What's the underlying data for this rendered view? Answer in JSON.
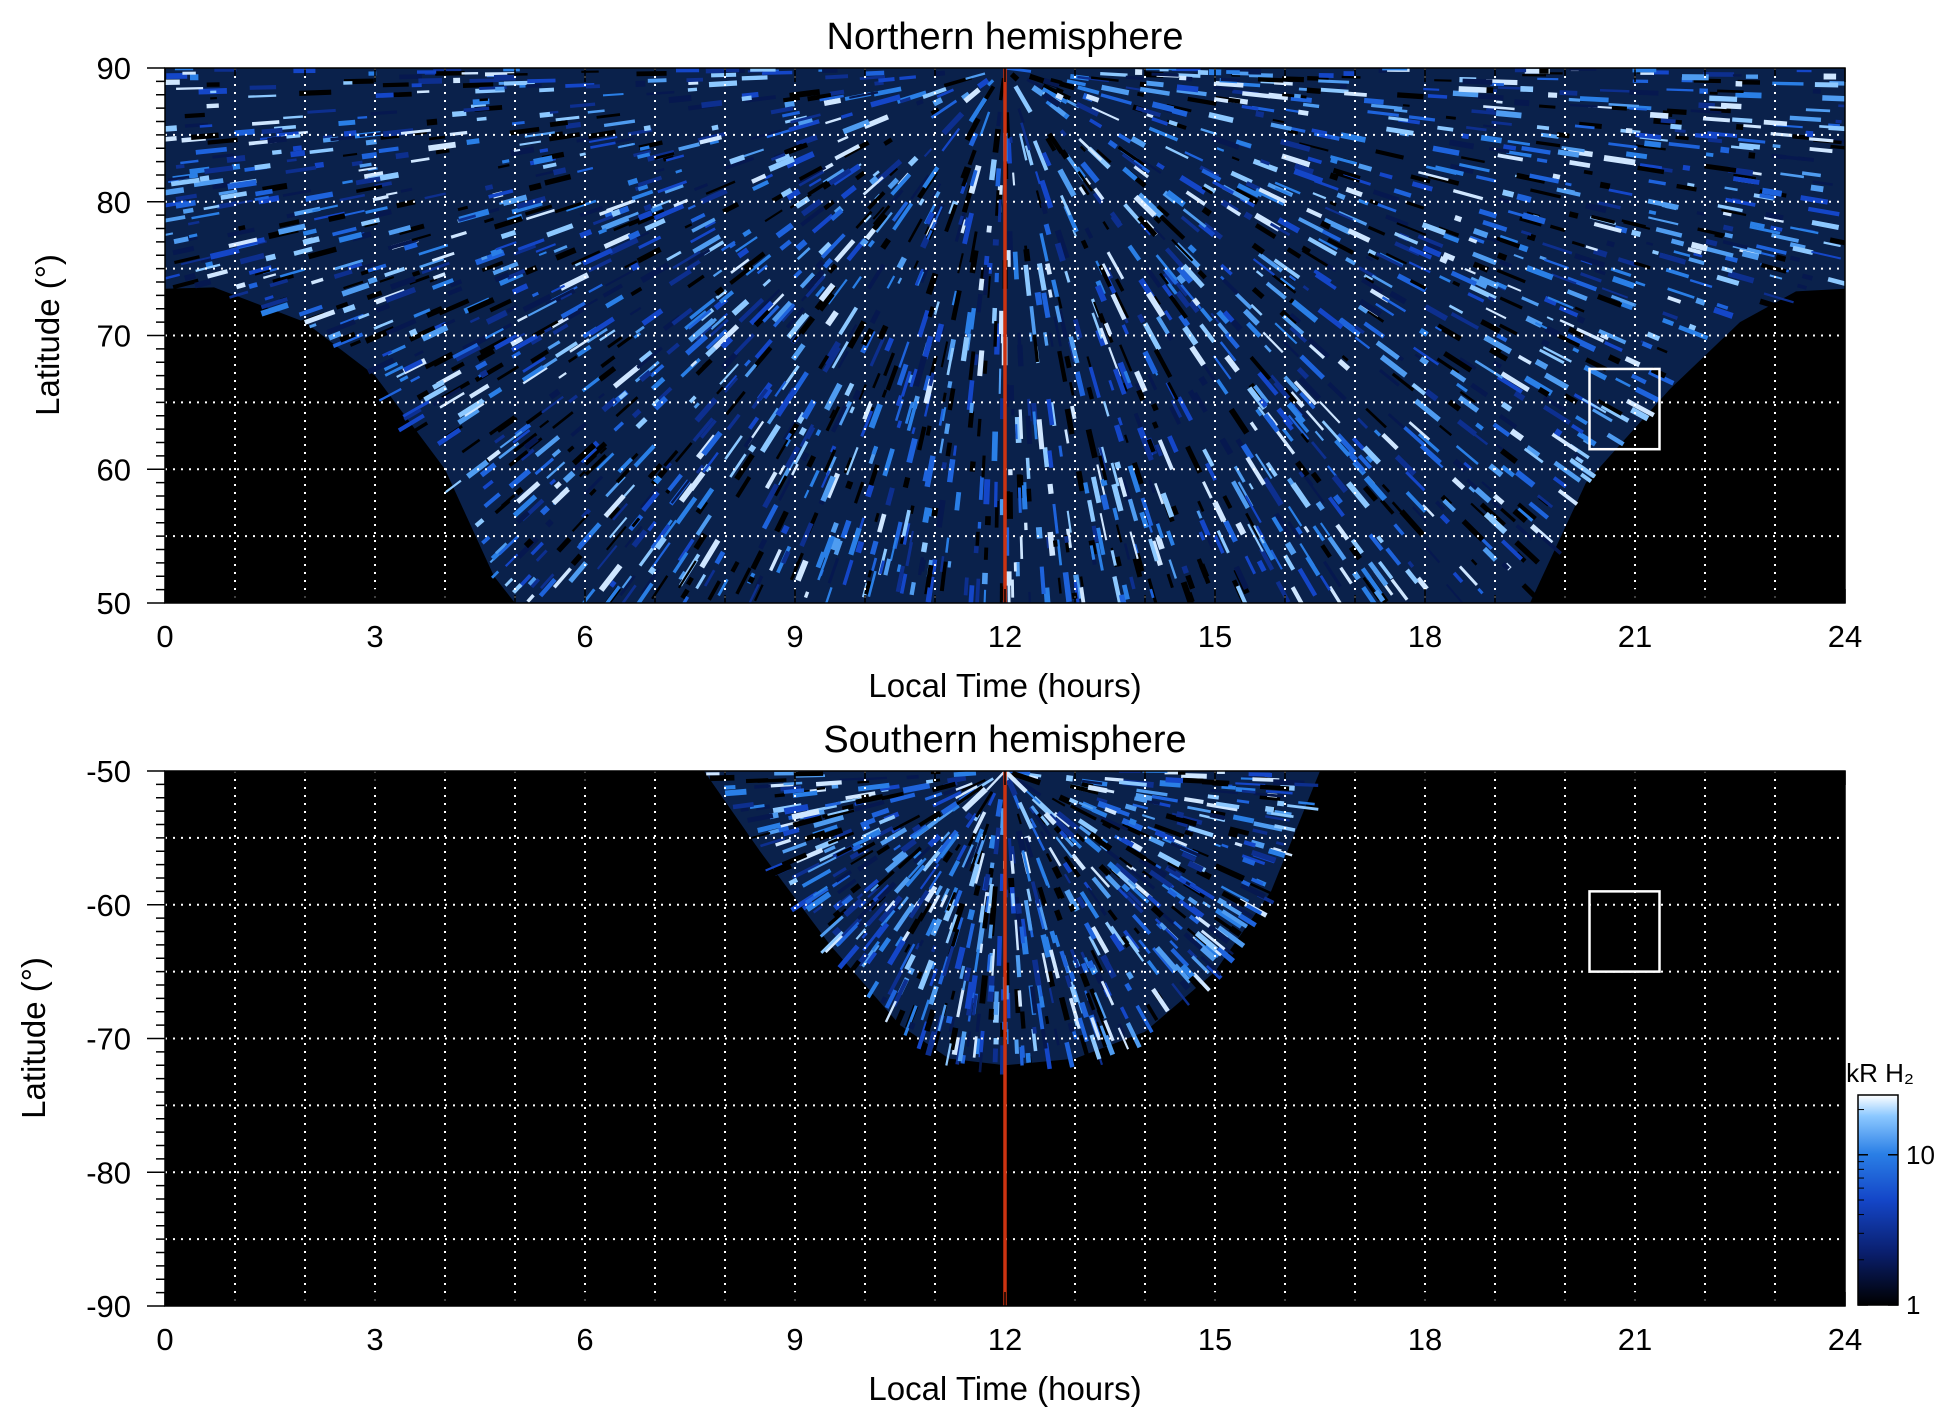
{
  "chart_data": [
    {
      "type": "heatmap",
      "title": "Northern hemisphere",
      "xlabel": "Local Time (hours)",
      "ylabel": "Latitude (°)",
      "xlim": [
        0,
        24
      ],
      "ylim": [
        50,
        90
      ],
      "xticks": [
        0,
        3,
        6,
        9,
        12,
        15,
        18,
        21,
        24
      ],
      "yticks": [
        50,
        60,
        70,
        80,
        90
      ],
      "grid": true,
      "background": "#000000",
      "marker_line": {
        "x": 12,
        "color": "#cc3311"
      },
      "box": {
        "x": [
          20.35,
          21.35
        ],
        "y": [
          61.5,
          67.5
        ],
        "color": "#ffffff"
      },
      "coverage_boundary": [
        {
          "x": 0,
          "y": 73.5
        },
        {
          "x": 0.7,
          "y": 73.6
        },
        {
          "x": 2,
          "y": 71
        },
        {
          "x": 3,
          "y": 67
        },
        {
          "x": 4,
          "y": 60
        },
        {
          "x": 4.7,
          "y": 52
        },
        {
          "x": 5,
          "y": 50
        },
        {
          "x": 19.5,
          "y": 50
        },
        {
          "x": 20.3,
          "y": 59
        },
        {
          "x": 21.5,
          "y": 66
        },
        {
          "x": 22.5,
          "y": 71
        },
        {
          "x": 23.3,
          "y": 73.3
        },
        {
          "x": 24,
          "y": 73.5
        }
      ]
    },
    {
      "type": "heatmap",
      "title": "Southern hemisphere",
      "xlabel": "Local Time (hours)",
      "ylabel": "Latitude (°)",
      "xlim": [
        0,
        24
      ],
      "ylim": [
        -90,
        -50
      ],
      "xticks": [
        0,
        3,
        6,
        9,
        12,
        15,
        18,
        21,
        24
      ],
      "yticks": [
        -90,
        -80,
        -70,
        -60,
        -50
      ],
      "grid": true,
      "background": "#000000",
      "marker_line": {
        "x": 12,
        "color": "#cc3311"
      },
      "box": {
        "x": [
          20.35,
          21.35
        ],
        "y": [
          -65,
          -59
        ],
        "color": "#ffffff"
      },
      "coverage_boundary": [
        {
          "x": 7.7,
          "y": -50
        },
        {
          "x": 8.5,
          "y": -56
        },
        {
          "x": 9.5,
          "y": -63
        },
        {
          "x": 10.5,
          "y": -69
        },
        {
          "x": 11.2,
          "y": -71.5
        },
        {
          "x": 12,
          "y": -72
        },
        {
          "x": 13,
          "y": -71.5
        },
        {
          "x": 14,
          "y": -69.5
        },
        {
          "x": 15,
          "y": -65
        },
        {
          "x": 15.8,
          "y": -59
        },
        {
          "x": 16.5,
          "y": -50
        }
      ]
    }
  ],
  "colorbar": {
    "label": "kR H₂",
    "scale": "log",
    "range": [
      1,
      25
    ],
    "ticks": [
      1,
      10
    ],
    "colors": [
      "#000000",
      "#0a1f6e",
      "#1446c8",
      "#2a7fe6",
      "#8cc8ff",
      "#ffffff"
    ]
  }
}
